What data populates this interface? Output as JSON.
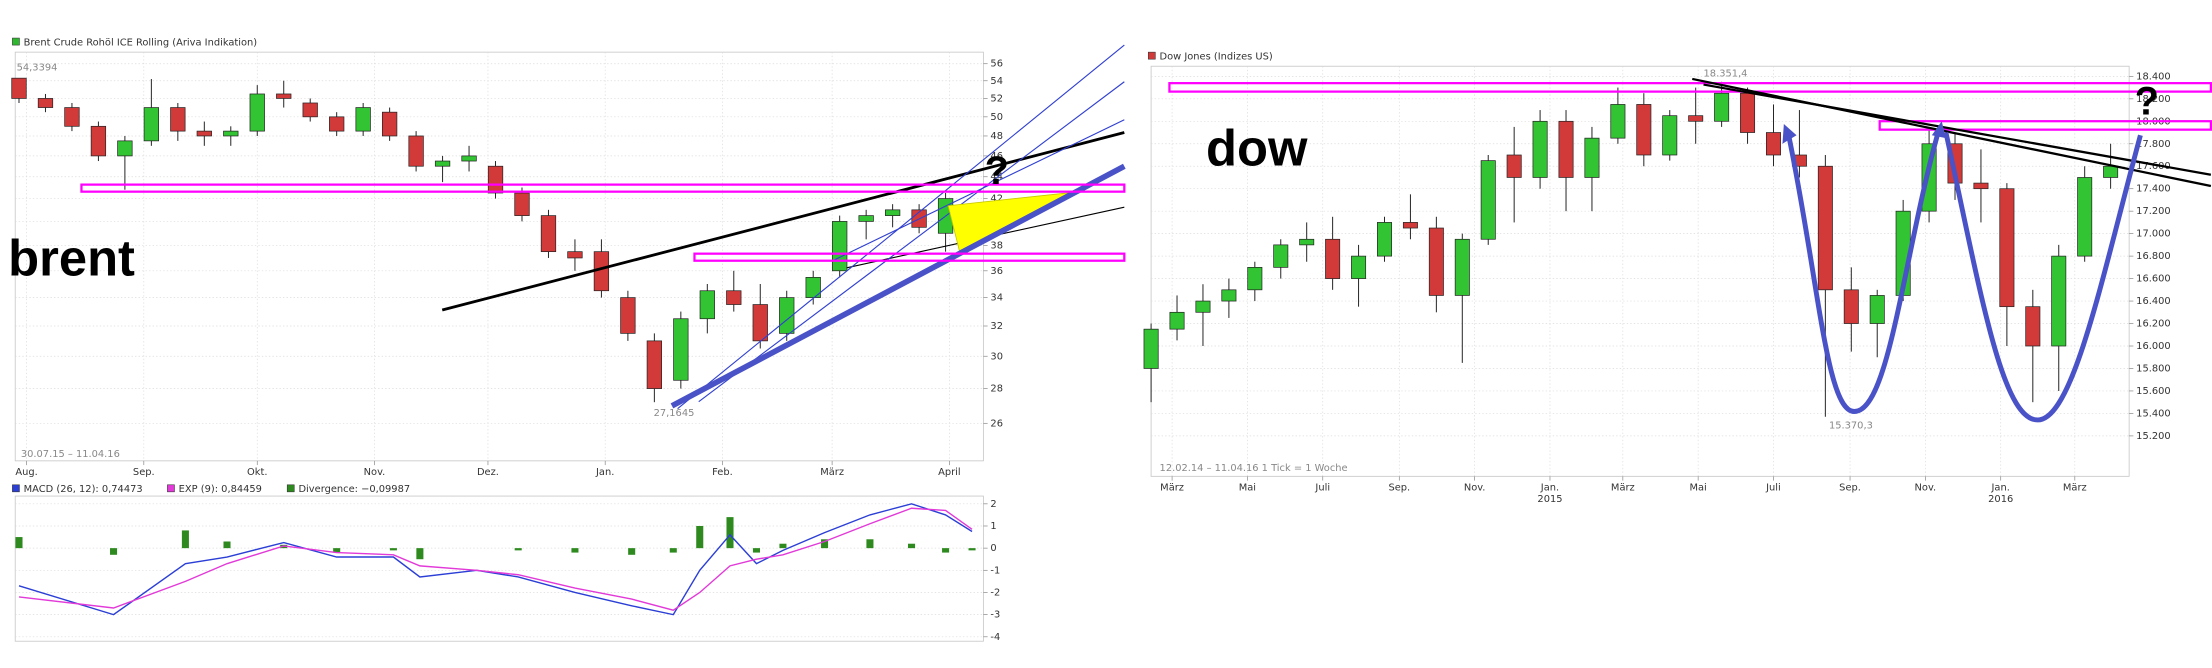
{
  "chart_data": [
    {
      "type": "candlestick",
      "title": "Brent Crude Rohöl ICE Rolling (Ariva Indikation)",
      "legend_color": "#2fb82f",
      "up_color": "#33c433",
      "down_color": "#d23a3a",
      "log": true,
      "grid": true,
      "xlim": [
        -3,
        253
      ],
      "ylim": [
        24,
        57.4
      ],
      "yticks": [
        26,
        28,
        30,
        32,
        34,
        36,
        38,
        40,
        42,
        44,
        46,
        48,
        50,
        52,
        54,
        56
      ],
      "xticks": [
        {
          "value": 0,
          "label": "Aug."
        },
        {
          "value": 31,
          "label": "Sep."
        },
        {
          "value": 61,
          "label": "Okt."
        },
        {
          "value": 92,
          "label": "Nov."
        },
        {
          "value": 122,
          "label": "Dez."
        },
        {
          "value": 153,
          "label": "Jan."
        },
        {
          "value": 184,
          "label": "Feb."
        },
        {
          "value": 213,
          "label": "März"
        },
        {
          "value": 244,
          "label": "April"
        }
      ],
      "x": [
        -2,
        5,
        12,
        19,
        26,
        33,
        40,
        47,
        54,
        61,
        68,
        75,
        82,
        89,
        96,
        103,
        110,
        117,
        124,
        131,
        138,
        145,
        152,
        159,
        166,
        173,
        180,
        187,
        194,
        201,
        208,
        215,
        222,
        229,
        236,
        243
      ],
      "open": [
        54.3,
        52,
        51,
        49,
        46,
        47.5,
        51,
        48.5,
        48,
        48.5,
        52.5,
        51.5,
        50,
        48.5,
        50.5,
        48,
        45,
        45.5,
        45,
        42.5,
        40.5,
        37.5,
        37.5,
        34,
        31,
        28.5,
        32.5,
        34.5,
        33.5,
        31.5,
        34,
        36,
        40,
        40.5,
        41,
        39
      ],
      "high": [
        54.3,
        52.5,
        51.5,
        49.5,
        48,
        54.2,
        51.5,
        49.5,
        49,
        53.5,
        54,
        52,
        50.5,
        51.5,
        51,
        48.5,
        46,
        47,
        45.5,
        43,
        41,
        38.5,
        38.5,
        34.5,
        31.5,
        33,
        35,
        36,
        35,
        34.5,
        36,
        40.5,
        41,
        41.5,
        41.5,
        42.5
      ],
      "low": [
        51.5,
        50.5,
        48.5,
        45.5,
        42.8,
        47,
        47.5,
        47,
        47,
        48,
        51,
        49.5,
        48,
        48,
        47.5,
        44.5,
        43.5,
        44.5,
        42,
        40,
        37,
        36,
        34,
        31,
        27.2,
        28,
        31.5,
        33,
        30.5,
        31,
        33.5,
        35.5,
        38.5,
        39.5,
        39,
        37.5
      ],
      "close": [
        52,
        51,
        49,
        46,
        47.5,
        51,
        48.5,
        48,
        48.5,
        52.5,
        52,
        50,
        48.5,
        51,
        48,
        45,
        45.5,
        46,
        42.5,
        40.5,
        37.5,
        37,
        34.5,
        31.5,
        28,
        32.5,
        34.5,
        33.5,
        31,
        34,
        35.5,
        40,
        40.5,
        41,
        39.5,
        42
      ],
      "annotations": [
        "brent",
        "54,3394",
        "27,1645",
        "30.07.15 – 11.04.16",
        "?"
      ]
    },
    {
      "type": "line",
      "grid": true,
      "xlim": [
        -3,
        253
      ],
      "ylim": [
        -4.2,
        2.35
      ],
      "yticks": [
        -4,
        -3,
        -2,
        -1,
        0,
        1,
        2
      ],
      "x": [
        -2,
        23,
        42,
        53,
        68,
        82,
        97,
        104,
        119,
        130,
        145,
        160,
        171,
        178,
        186,
        193,
        200,
        211,
        223,
        234,
        243,
        250
      ],
      "series": [
        {
          "name": "MACD (26, 12): 0,74473",
          "color": "#2b3fd6",
          "style": "line",
          "values": [
            -1.7,
            -3.0,
            -0.7,
            -0.4,
            0.25,
            -0.4,
            -0.4,
            -1.3,
            -1.0,
            -1.3,
            -2.0,
            -2.6,
            -3.0,
            -1.0,
            0.6,
            -0.7,
            -0.1,
            0.7,
            1.5,
            2.0,
            1.5,
            0.75
          ]
        },
        {
          "name": "EXP (9): 0,84459",
          "color": "#e23ad8",
          "style": "line",
          "values": [
            -2.2,
            -2.7,
            -1.5,
            -0.7,
            0.1,
            -0.2,
            -0.3,
            -0.8,
            -1.0,
            -1.2,
            -1.8,
            -2.3,
            -2.8,
            -2.0,
            -0.8,
            -0.5,
            -0.3,
            0.3,
            1.1,
            1.8,
            1.7,
            0.85
          ]
        },
        {
          "name": "Divergence: −0,09987",
          "color": "#2e8a1f",
          "style": "bar",
          "values": [
            0.5,
            -0.3,
            0.8,
            0.3,
            0.15,
            -0.2,
            -0.1,
            -0.5,
            0,
            -0.1,
            -0.2,
            -0.3,
            -0.2,
            1.0,
            1.4,
            -0.2,
            0.2,
            0.4,
            0.4,
            0.2,
            -0.2,
            -0.1
          ]
        }
      ]
    },
    {
      "type": "candlestick",
      "title": "Dow Jones (Indizes US)",
      "legend_color": "#d23a3a",
      "up_color": "#33c433",
      "down_color": "#d23a3a",
      "log": false,
      "grid": true,
      "xlim": [
        -17,
        775
      ],
      "ylim": [
        14840,
        18490
      ],
      "yticks": [
        {
          "value": 15200,
          "label": "15.200"
        },
        {
          "value": 15400,
          "label": "15.400"
        },
        {
          "value": 15600,
          "label": "15.600"
        },
        {
          "value": 15800,
          "label": "15.800"
        },
        {
          "value": 16000,
          "label": "16.000"
        },
        {
          "value": 16200,
          "label": "16.200"
        },
        {
          "value": 16400,
          "label": "16.400"
        },
        {
          "value": 16600,
          "label": "16.600"
        },
        {
          "value": 16800,
          "label": "16.800"
        },
        {
          "value": 17000,
          "label": "17.000"
        },
        {
          "value": 17200,
          "label": "17.200"
        },
        {
          "value": 17400,
          "label": "17.400"
        },
        {
          "value": 17600,
          "label": "17.600"
        },
        {
          "value": 17800,
          "label": "17.800"
        },
        {
          "value": 18000,
          "label": "18.000"
        },
        {
          "value": 18200,
          "label": "18.200"
        },
        {
          "value": 18400,
          "label": "18.400"
        }
      ],
      "xticks": [
        {
          "value": 0,
          "label": "März"
        },
        {
          "value": 61,
          "label": "Mai"
        },
        {
          "value": 122,
          "label": "Juli"
        },
        {
          "value": 184,
          "label": "Sep."
        },
        {
          "value": 245,
          "label": "Nov."
        },
        {
          "value": 306,
          "label": "Jan."
        },
        {
          "value": 365,
          "label": "März"
        },
        {
          "value": 426,
          "label": "Mai"
        },
        {
          "value": 487,
          "label": "Juli"
        },
        {
          "value": 549,
          "label": "Sep."
        },
        {
          "value": 610,
          "label": "Nov."
        },
        {
          "value": 671,
          "label": "Jan."
        },
        {
          "value": 731,
          "label": "März"
        }
      ],
      "xticks_secondary": [
        {
          "value": 306,
          "label": "2015"
        },
        {
          "value": 671,
          "label": "2016"
        }
      ],
      "x": [
        -17,
        4,
        25,
        46,
        67,
        88,
        109,
        130,
        151,
        172,
        193,
        214,
        235,
        256,
        277,
        298,
        319,
        340,
        361,
        382,
        403,
        424,
        445,
        466,
        487,
        508,
        529,
        550,
        571,
        592,
        613,
        634,
        655,
        676,
        697,
        718,
        739,
        760
      ],
      "open": [
        15800,
        16150,
        16300,
        16400,
        16500,
        16700,
        16900,
        16950,
        16600,
        16800,
        17100,
        17050,
        16450,
        16950,
        17700,
        17500,
        18000,
        17500,
        17850,
        18150,
        17700,
        18050,
        18000,
        18250,
        17900,
        17700,
        17600,
        16500,
        16200,
        16450,
        17200,
        17800,
        17450,
        17400,
        16350,
        16000,
        16800,
        17500
      ],
      "high": [
        16200,
        16450,
        16550,
        16600,
        16750,
        16950,
        17100,
        17150,
        16900,
        17150,
        17350,
        17150,
        17000,
        17700,
        17950,
        18100,
        18100,
        17950,
        18300,
        18250,
        18100,
        18300,
        18351.4,
        18300,
        18150,
        18100,
        17700,
        16700,
        16500,
        17300,
        17950,
        17900,
        17750,
        17450,
        16500,
        16900,
        17600,
        17800
      ],
      "low": [
        15500,
        16050,
        16000,
        16250,
        16400,
        16600,
        16750,
        16500,
        16350,
        16750,
        16950,
        16300,
        15850,
        16900,
        17100,
        17400,
        17200,
        17200,
        17800,
        17600,
        17650,
        17800,
        17950,
        17800,
        17600,
        17500,
        15370.3,
        15950,
        15900,
        16400,
        17100,
        17300,
        17100,
        16000,
        15500,
        15600,
        16750,
        17400
      ],
      "close": [
        16150,
        16300,
        16400,
        16500,
        16700,
        16900,
        16950,
        16600,
        16800,
        17100,
        17050,
        16450,
        16950,
        17650,
        17500,
        18000,
        17500,
        17850,
        18150,
        17700,
        18050,
        18000,
        18250,
        17900,
        17700,
        17600,
        16500,
        16200,
        16450,
        17200,
        17800,
        17450,
        17400,
        16350,
        16000,
        16800,
        17500,
        17600
      ],
      "annotations": [
        "dow",
        "18.351,4",
        "15.370,3",
        "12.02.14 – 11.04.16   1 Tick = 1 Woche",
        "?"
      ]
    }
  ]
}
